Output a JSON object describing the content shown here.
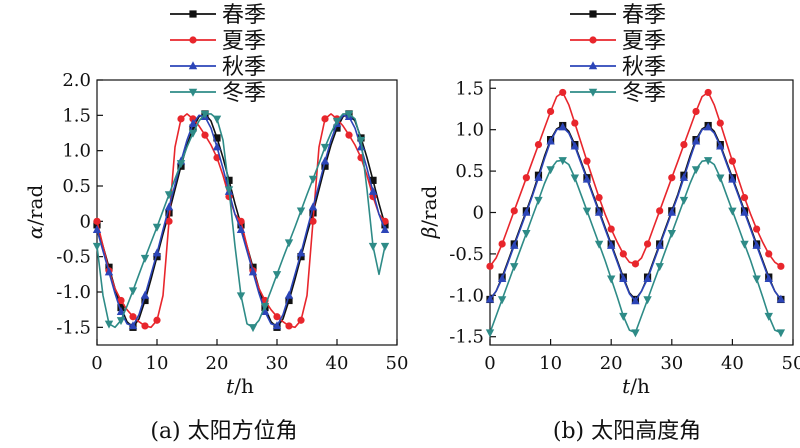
{
  "seasons": {
    "spring": {
      "name": "春季",
      "color": "#111111",
      "marker": "square"
    },
    "summer": {
      "name": "夏季",
      "color": "#e8262c",
      "marker": "circle"
    },
    "autumn": {
      "name": "秋季",
      "color": "#2c45b8",
      "marker": "triangle-up"
    },
    "winter": {
      "name": "冬季",
      "color": "#2e8b87",
      "marker": "triangle-down"
    }
  },
  "chart_data": [
    {
      "type": "line",
      "caption": "(a) 太阳方位角",
      "xlabel_italic": "t",
      "xlabel_unit": "/h",
      "ylabel_symbol": "α",
      "ylabel_unit": "/rad",
      "xlim": [
        0,
        50
      ],
      "ylim": [
        -1.75,
        2.0
      ],
      "xticks": [
        0,
        10,
        20,
        30,
        40,
        50
      ],
      "xtick_labels": [
        "0",
        "10",
        "20",
        "30",
        "40",
        "50"
      ],
      "yticks": [
        -1.5,
        -1.0,
        -0.5,
        0,
        0.5,
        1.0,
        1.5,
        2.0
      ],
      "ytick_labels": [
        "-1.5",
        "-1.0",
        "-0.5",
        "0",
        "0.5",
        "1.0",
        "1.5",
        "2.0"
      ],
      "grid": false,
      "legend_position": "top-center",
      "series": [
        {
          "key": "spring",
          "name": "春季",
          "x": [
            0,
            1,
            2,
            3,
            4,
            5,
            6,
            7,
            8,
            9,
            10,
            11,
            12,
            13,
            14,
            15,
            16,
            17,
            18,
            19,
            20,
            21,
            22,
            23,
            24,
            25,
            26,
            27,
            28,
            29,
            30,
            31,
            32,
            33,
            34,
            35,
            36,
            37,
            38,
            39,
            40,
            41,
            42,
            43,
            44,
            45,
            46,
            47,
            48
          ],
          "y": [
            -0.05,
            -0.35,
            -0.65,
            -0.95,
            -1.22,
            -1.42,
            -1.5,
            -1.38,
            -1.12,
            -0.82,
            -0.5,
            -0.18,
            0.12,
            0.45,
            0.78,
            1.08,
            1.32,
            1.48,
            1.52,
            1.42,
            1.18,
            0.9,
            0.58,
            0.25,
            -0.05,
            -0.35,
            -0.65,
            -0.95,
            -1.22,
            -1.42,
            -1.5,
            -1.38,
            -1.12,
            -0.82,
            -0.5,
            -0.18,
            0.12,
            0.45,
            0.78,
            1.08,
            1.32,
            1.48,
            1.52,
            1.42,
            1.18,
            0.9,
            0.58,
            0.25,
            -0.05
          ]
        },
        {
          "key": "summer",
          "name": "夏季",
          "x": [
            0,
            1,
            2,
            3,
            4,
            5,
            6,
            7,
            8,
            9,
            10,
            11,
            12,
            13,
            14,
            15,
            16,
            17,
            18,
            19,
            20,
            21,
            22,
            23,
            24,
            25,
            26,
            27,
            28,
            29,
            30,
            31,
            32,
            33,
            34,
            35,
            36,
            37,
            38,
            39,
            40,
            41,
            42,
            43,
            44,
            45,
            46,
            47,
            48
          ],
          "y": [
            0.0,
            -0.35,
            -0.7,
            -0.95,
            -1.12,
            -1.25,
            -1.35,
            -1.42,
            -1.48,
            -1.5,
            -1.4,
            -1.05,
            0.0,
            1.05,
            1.45,
            1.52,
            1.45,
            1.35,
            1.22,
            1.08,
            0.9,
            0.65,
            0.35,
            0.1,
            0.0,
            -0.35,
            -0.7,
            -0.95,
            -1.12,
            -1.25,
            -1.35,
            -1.42,
            -1.48,
            -1.5,
            -1.4,
            -1.05,
            0.0,
            1.05,
            1.45,
            1.52,
            1.45,
            1.35,
            1.22,
            1.08,
            0.9,
            0.65,
            0.35,
            0.1,
            0.0
          ]
        },
        {
          "key": "autumn",
          "name": "秋季",
          "x": [
            0,
            1,
            2,
            3,
            4,
            5,
            6,
            7,
            8,
            9,
            10,
            11,
            12,
            13,
            14,
            15,
            16,
            17,
            18,
            19,
            20,
            21,
            22,
            23,
            24,
            25,
            26,
            27,
            28,
            29,
            30,
            31,
            32,
            33,
            34,
            35,
            36,
            37,
            38,
            39,
            40,
            41,
            42,
            43,
            44,
            45,
            46,
            47,
            48
          ],
          "y": [
            -0.12,
            -0.42,
            -0.72,
            -1.02,
            -1.28,
            -1.45,
            -1.48,
            -1.32,
            -1.05,
            -0.75,
            -0.45,
            -0.12,
            0.2,
            0.52,
            0.85,
            1.15,
            1.38,
            1.5,
            1.48,
            1.32,
            1.05,
            0.75,
            0.42,
            0.1,
            -0.12,
            -0.42,
            -0.72,
            -1.02,
            -1.28,
            -1.45,
            -1.48,
            -1.32,
            -1.05,
            -0.75,
            -0.45,
            -0.12,
            0.2,
            0.52,
            0.85,
            1.15,
            1.38,
            1.5,
            1.48,
            1.32,
            1.05,
            0.75,
            0.42,
            0.1,
            -0.12
          ]
        },
        {
          "key": "winter",
          "name": "冬季",
          "x": [
            0,
            1,
            2,
            3,
            4,
            5,
            6,
            7,
            8,
            9,
            10,
            11,
            12,
            13,
            14,
            15,
            16,
            17,
            18,
            19,
            20,
            21,
            22,
            23,
            24,
            25,
            26,
            27,
            28,
            29,
            30,
            31,
            32,
            33,
            34,
            35,
            36,
            37,
            38,
            39,
            40,
            41,
            42,
            43,
            44,
            45,
            46,
            47,
            48
          ],
          "y": [
            -0.35,
            -1.05,
            -1.45,
            -1.5,
            -1.4,
            -1.2,
            -0.98,
            -0.75,
            -0.52,
            -0.3,
            -0.08,
            0.15,
            0.38,
            0.6,
            0.82,
            1.05,
            1.25,
            1.42,
            1.52,
            1.52,
            1.45,
            1.15,
            0.45,
            -0.35,
            -1.05,
            -1.45,
            -1.5,
            -1.4,
            -1.2,
            -0.98,
            -0.75,
            -0.52,
            -0.3,
            -0.08,
            0.15,
            0.38,
            0.6,
            0.82,
            1.05,
            1.25,
            1.42,
            1.52,
            1.52,
            1.45,
            1.15,
            0.45,
            -0.35,
            -0.75,
            -0.35
          ]
        }
      ]
    },
    {
      "type": "line",
      "caption": "(b) 太阳高度角",
      "xlabel_italic": "t",
      "xlabel_unit": "/h",
      "ylabel_symbol": "β",
      "ylabel_unit": "/rad",
      "xlim": [
        0,
        50
      ],
      "ylim": [
        -1.6,
        1.6
      ],
      "xticks": [
        0,
        10,
        20,
        30,
        40,
        50
      ],
      "xtick_labels": [
        "0",
        "10",
        "20",
        "30",
        "40",
        "50"
      ],
      "yticks": [
        -1.5,
        -1.0,
        -0.5,
        0,
        0.5,
        1.0,
        1.5
      ],
      "ytick_labels": [
        "-1.5",
        "-1.0",
        "-0.5",
        "0",
        "0.5",
        "1.0",
        "1.5"
      ],
      "grid": false,
      "legend_position": "top-center",
      "series": [
        {
          "key": "spring",
          "name": "春季",
          "x": [
            0,
            1,
            2,
            3,
            4,
            5,
            6,
            7,
            8,
            9,
            10,
            11,
            12,
            13,
            14,
            15,
            16,
            17,
            18,
            19,
            20,
            21,
            22,
            23,
            24,
            25,
            26,
            27,
            28,
            29,
            30,
            31,
            32,
            33,
            34,
            35,
            36,
            37,
            38,
            39,
            40,
            41,
            42,
            43,
            44,
            45,
            46,
            47,
            48
          ],
          "y": [
            -1.05,
            -0.95,
            -0.78,
            -0.58,
            -0.38,
            -0.18,
            0.02,
            0.22,
            0.45,
            0.68,
            0.88,
            1.01,
            1.05,
            0.98,
            0.82,
            0.62,
            0.42,
            0.22,
            0.02,
            -0.18,
            -0.38,
            -0.58,
            -0.78,
            -0.97,
            -1.05,
            -0.95,
            -0.78,
            -0.58,
            -0.38,
            -0.18,
            0.02,
            0.22,
            0.45,
            0.68,
            0.88,
            1.01,
            1.05,
            0.98,
            0.82,
            0.62,
            0.42,
            0.22,
            0.02,
            -0.18,
            -0.38,
            -0.58,
            -0.78,
            -0.95,
            -1.05
          ]
        },
        {
          "key": "summer",
          "name": "夏季",
          "x": [
            0,
            1,
            2,
            3,
            4,
            5,
            6,
            7,
            8,
            9,
            10,
            11,
            12,
            13,
            14,
            15,
            16,
            17,
            18,
            19,
            20,
            21,
            22,
            23,
            24,
            25,
            26,
            27,
            28,
            29,
            30,
            31,
            32,
            33,
            34,
            35,
            36,
            37,
            38,
            39,
            40,
            41,
            42,
            43,
            44,
            45,
            46,
            47,
            48
          ],
          "y": [
            -0.65,
            -0.55,
            -0.38,
            -0.18,
            0.02,
            0.22,
            0.42,
            0.62,
            0.82,
            1.02,
            1.22,
            1.4,
            1.45,
            1.3,
            1.08,
            0.85,
            0.62,
            0.4,
            0.18,
            -0.02,
            -0.2,
            -0.36,
            -0.5,
            -0.6,
            -0.62,
            -0.55,
            -0.38,
            -0.18,
            0.02,
            0.22,
            0.42,
            0.62,
            0.82,
            1.02,
            1.22,
            1.4,
            1.45,
            1.3,
            1.08,
            0.85,
            0.62,
            0.4,
            0.18,
            -0.02,
            -0.2,
            -0.36,
            -0.5,
            -0.6,
            -0.65
          ]
        },
        {
          "key": "autumn",
          "name": "秋季",
          "x": [
            0,
            1,
            2,
            3,
            4,
            5,
            6,
            7,
            8,
            9,
            10,
            11,
            12,
            13,
            14,
            15,
            16,
            17,
            18,
            19,
            20,
            21,
            22,
            23,
            24,
            25,
            26,
            27,
            28,
            29,
            30,
            31,
            32,
            33,
            34,
            35,
            36,
            37,
            38,
            39,
            40,
            41,
            42,
            43,
            44,
            45,
            46,
            47,
            48
          ],
          "y": [
            -1.05,
            -0.95,
            -0.8,
            -0.6,
            -0.4,
            -0.2,
            0.0,
            0.2,
            0.42,
            0.65,
            0.86,
            1.0,
            1.03,
            0.96,
            0.8,
            0.6,
            0.4,
            0.2,
            0.0,
            -0.2,
            -0.4,
            -0.6,
            -0.8,
            -0.98,
            -1.07,
            -0.95,
            -0.8,
            -0.6,
            -0.4,
            -0.2,
            0.0,
            0.2,
            0.42,
            0.65,
            0.86,
            1.0,
            1.03,
            0.96,
            0.8,
            0.6,
            0.4,
            0.2,
            0.0,
            -0.2,
            -0.4,
            -0.6,
            -0.8,
            -0.95,
            -1.05
          ]
        },
        {
          "key": "winter",
          "name": "冬季",
          "x": [
            0,
            1,
            2,
            3,
            4,
            5,
            6,
            7,
            8,
            9,
            10,
            11,
            12,
            13,
            14,
            15,
            16,
            17,
            18,
            19,
            20,
            21,
            22,
            23,
            24,
            25,
            26,
            27,
            28,
            29,
            30,
            31,
            32,
            33,
            34,
            35,
            36,
            37,
            38,
            39,
            40,
            41,
            42,
            43,
            44,
            45,
            46,
            47,
            48
          ],
          "y": [
            -1.45,
            -1.25,
            -1.05,
            -0.85,
            -0.65,
            -0.45,
            -0.25,
            -0.05,
            0.15,
            0.35,
            0.52,
            0.62,
            0.63,
            0.58,
            0.42,
            0.22,
            0.02,
            -0.18,
            -0.38,
            -0.58,
            -0.8,
            -1.02,
            -1.25,
            -1.42,
            -1.45,
            -1.25,
            -1.05,
            -0.85,
            -0.65,
            -0.45,
            -0.25,
            -0.05,
            0.15,
            0.35,
            0.52,
            0.62,
            0.63,
            0.58,
            0.42,
            0.22,
            0.02,
            -0.18,
            -0.38,
            -0.58,
            -0.8,
            -1.02,
            -1.25,
            -1.42,
            -1.45
          ]
        }
      ]
    }
  ]
}
